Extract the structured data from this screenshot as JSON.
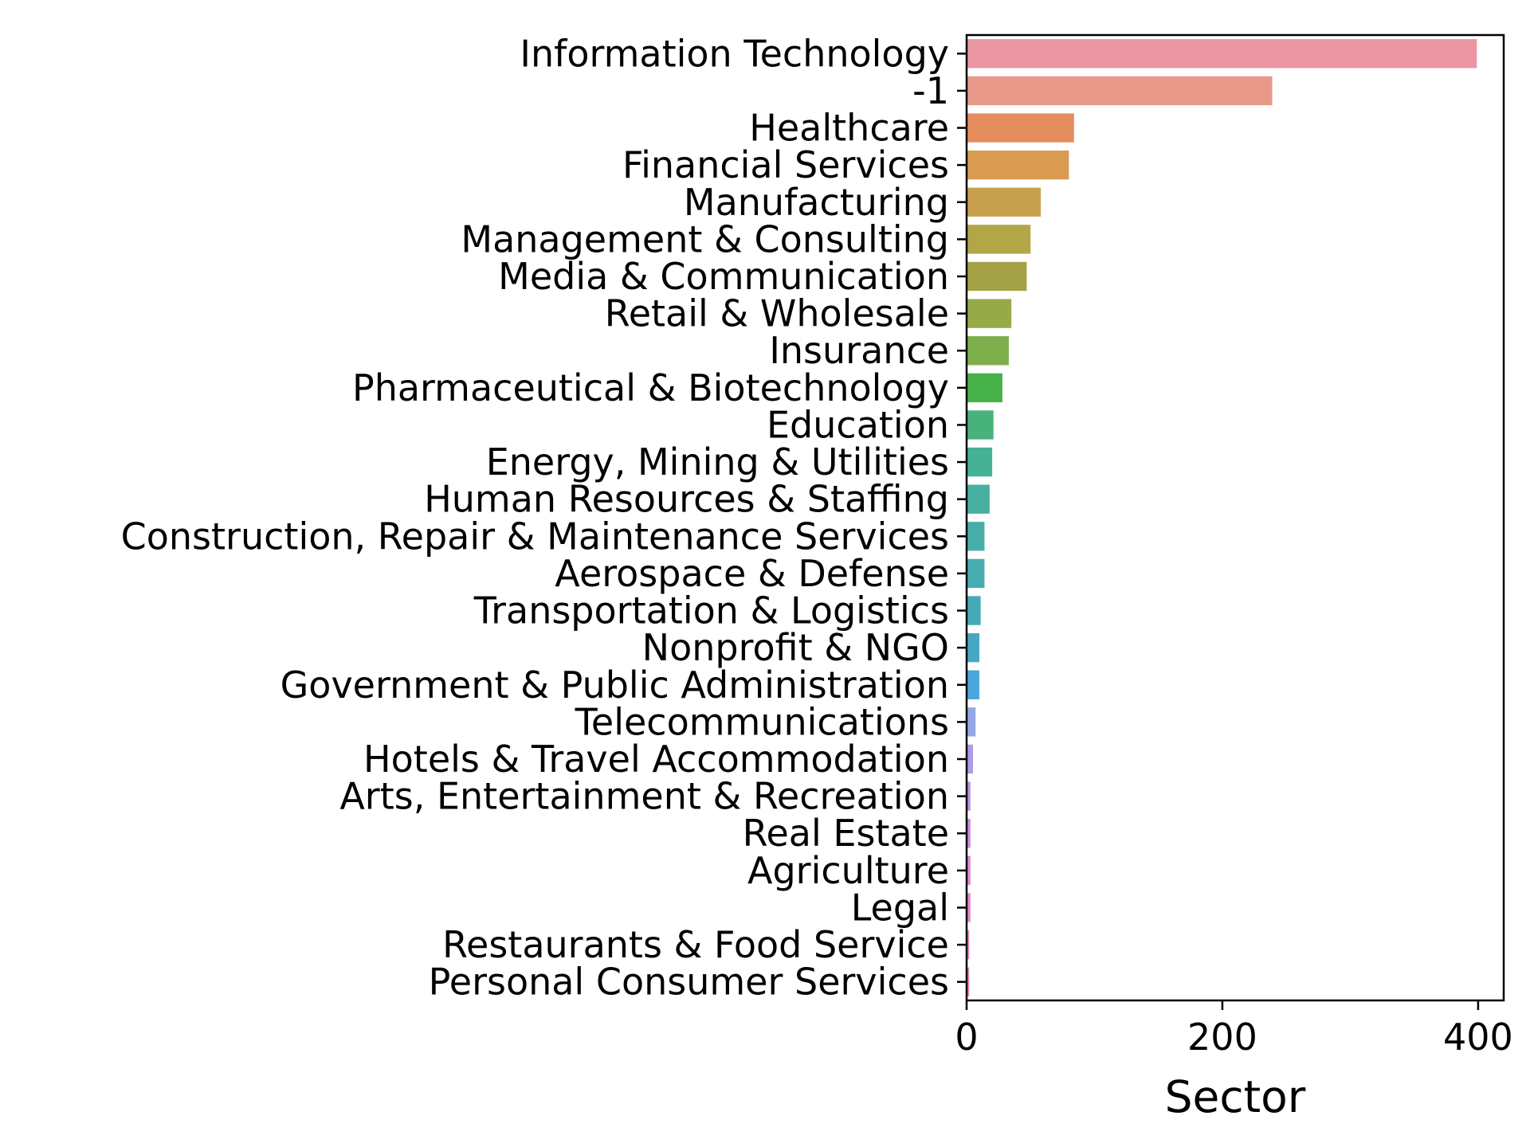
{
  "chart_data": {
    "type": "bar",
    "orientation": "horizontal",
    "xlabel": "Sector",
    "ylabel": "",
    "xlim": [
      0,
      420
    ],
    "xticks": [
      0,
      200,
      400
    ],
    "grid": false,
    "categories": [
      "Information Technology",
      "-1",
      "Healthcare",
      "Financial Services",
      "Manufacturing",
      "Management & Consulting",
      "Media & Communication",
      "Retail & Wholesale",
      "Insurance",
      "Pharmaceutical & Biotechnology",
      "Education",
      "Energy, Mining & Utilities",
      "Human Resources & Staffing",
      "Construction, Repair & Maintenance Services",
      "Aerospace & Defense",
      "Transportation & Logistics",
      "Nonprofit & NGO",
      "Government & Public Administration",
      "Telecommunications",
      "Hotels & Travel Accommodation",
      "Arts, Entertainment & Recreation",
      "Real Estate",
      "Agriculture",
      "Legal",
      "Restaurants & Food Service",
      "Personal Consumer Services"
    ],
    "values": [
      399,
      239,
      84,
      80,
      58,
      50,
      47,
      35,
      33,
      28,
      21,
      20,
      18,
      14,
      14,
      11,
      10,
      10,
      7,
      5,
      3,
      3,
      3,
      3,
      2,
      2
    ],
    "colors": [
      "#ea96a3",
      "#e9998a",
      "#e68d5e",
      "#d99b4f",
      "#c7a04d",
      "#b2a646",
      "#a5a348",
      "#96aa4a",
      "#7eaf4d",
      "#45b148",
      "#47b27c",
      "#46b295",
      "#48b0a0",
      "#48aeaa",
      "#47adb1",
      "#47aab8",
      "#48a7c3",
      "#4ba6db",
      "#94a8e6",
      "#ad9ae8",
      "#bb92e6",
      "#cc8ae2",
      "#dd87d6",
      "#e287c6",
      "#e585b6",
      "#e8839e"
    ]
  }
}
